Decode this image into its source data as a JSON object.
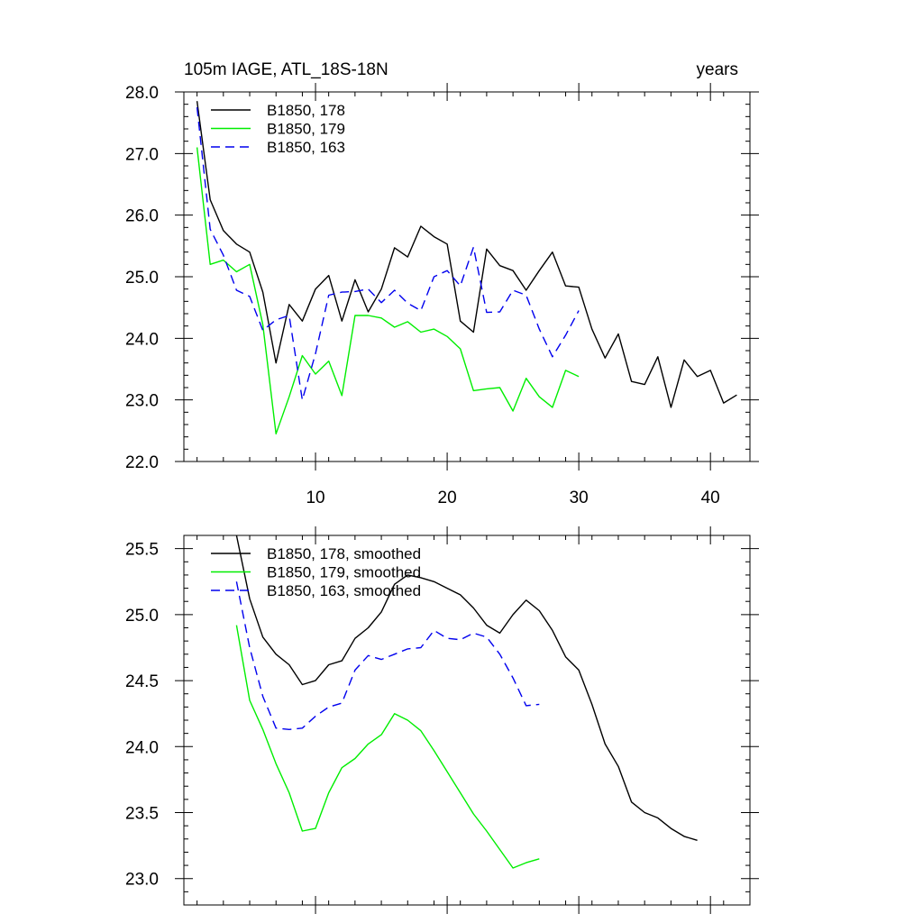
{
  "chart_data": [
    {
      "type": "line",
      "title_left": "105m IAGE, ATL_18S-18N",
      "title_right": "years",
      "xlim": [
        0,
        43
      ],
      "ylim": [
        22.0,
        28.0
      ],
      "x_ticks": [
        10,
        20,
        30,
        40
      ],
      "x_tick_labels": [
        "10",
        "20",
        "30",
        "40"
      ],
      "y_ticks": [
        22.0,
        23.0,
        24.0,
        25.0,
        26.0,
        27.0,
        28.0
      ],
      "y_tick_labels": [
        "22.0",
        "23.0",
        "24.0",
        "25.0",
        "26.0",
        "27.0",
        "28.0"
      ],
      "series": [
        {
          "name": "B1850, 178",
          "color": "#000000",
          "dash": "solid",
          "x": [
            1,
            2,
            3,
            4,
            5,
            6,
            7,
            8,
            9,
            10,
            11,
            12,
            13,
            14,
            15,
            16,
            17,
            18,
            19,
            20,
            21,
            22,
            23,
            24,
            25,
            26,
            27,
            28,
            29,
            30,
            31,
            32,
            33,
            34,
            35,
            36,
            37,
            38,
            39,
            40,
            41,
            42
          ],
          "values": [
            27.85,
            26.25,
            25.75,
            25.53,
            25.4,
            24.75,
            23.6,
            24.55,
            24.28,
            24.8,
            25.02,
            24.28,
            24.95,
            24.43,
            24.8,
            25.47,
            25.32,
            25.82,
            25.65,
            25.53,
            24.28,
            24.1,
            25.45,
            25.18,
            25.1,
            24.78,
            25.1,
            25.4,
            24.85,
            24.83,
            24.15,
            23.68,
            24.07,
            23.3,
            23.25,
            23.7,
            22.88,
            23.65,
            23.38,
            23.48,
            22.95,
            23.08
          ]
        },
        {
          "name": "B1850, 179",
          "color": "#00ee00",
          "dash": "solid",
          "x": [
            1,
            2,
            3,
            4,
            5,
            6,
            7,
            8,
            9,
            10,
            11,
            12,
            13,
            14,
            15,
            16,
            17,
            18,
            19,
            20,
            21,
            22,
            23,
            24,
            25,
            26,
            27,
            28,
            29,
            30
          ],
          "values": [
            27.1,
            25.2,
            25.27,
            25.08,
            25.2,
            24.22,
            22.45,
            23.05,
            23.72,
            23.42,
            23.63,
            23.07,
            24.37,
            24.37,
            24.33,
            24.18,
            24.27,
            24.1,
            24.15,
            24.03,
            23.83,
            23.15,
            23.18,
            23.2,
            22.82,
            23.35,
            23.05,
            22.88,
            23.48,
            23.38
          ]
        },
        {
          "name": "B1850, 163",
          "color": "#0000ee",
          "dash": "dashed",
          "x": [
            1,
            2,
            3,
            4,
            5,
            6,
            7,
            8,
            9,
            10,
            11,
            12,
            13,
            14,
            15,
            16,
            17,
            18,
            19,
            20,
            21,
            22,
            23,
            24,
            25,
            26,
            27,
            28,
            29,
            30
          ],
          "values": [
            27.75,
            25.77,
            25.35,
            24.78,
            24.68,
            24.13,
            24.3,
            24.37,
            23.0,
            23.75,
            24.7,
            24.75,
            24.76,
            24.8,
            24.58,
            24.78,
            24.57,
            24.45,
            25.0,
            25.1,
            24.85,
            25.48,
            24.42,
            24.43,
            24.78,
            24.7,
            24.15,
            23.7,
            24.05,
            24.45
          ]
        }
      ],
      "legend": {
        "placement": "top-left",
        "entries": [
          "B1850, 178",
          "B1850, 179",
          "B1850, 163"
        ]
      }
    },
    {
      "type": "line",
      "xlim": [
        0,
        43
      ],
      "ylim": [
        22.8,
        25.6
      ],
      "x_ticks": [
        10,
        20,
        30,
        40
      ],
      "y_ticks": [
        23.0,
        23.5,
        24.0,
        24.5,
        25.0,
        25.5
      ],
      "y_tick_labels": [
        "23.0",
        "23.5",
        "24.0",
        "24.5",
        "25.0",
        "25.5"
      ],
      "series": [
        {
          "name": "B1850, 178, smoothed",
          "color": "#000000",
          "dash": "solid",
          "x": [
            4,
            5,
            6,
            7,
            8,
            9,
            10,
            11,
            12,
            13,
            14,
            15,
            16,
            17,
            18,
            19,
            20,
            21,
            22,
            23,
            24,
            25,
            26,
            27,
            28,
            29,
            30,
            31,
            32,
            33,
            34,
            35,
            36,
            37,
            38,
            39
          ],
          "values": [
            25.6,
            25.12,
            24.83,
            24.7,
            24.62,
            24.47,
            24.5,
            24.62,
            24.65,
            24.82,
            24.9,
            25.02,
            25.23,
            25.3,
            25.28,
            25.25,
            25.2,
            25.15,
            25.05,
            24.92,
            24.86,
            25.0,
            25.11,
            25.03,
            24.88,
            24.68,
            24.58,
            24.32,
            24.02,
            23.85,
            23.58,
            23.5,
            23.46,
            23.38,
            23.32,
            23.29
          ]
        },
        {
          "name": "B1850, 179, smoothed",
          "color": "#00ee00",
          "dash": "solid",
          "x": [
            4,
            5,
            6,
            7,
            8,
            9,
            10,
            11,
            12,
            13,
            14,
            15,
            16,
            17,
            18,
            19,
            20,
            21,
            22,
            23,
            24,
            25,
            26,
            27
          ],
          "values": [
            24.92,
            24.35,
            24.13,
            23.87,
            23.65,
            23.36,
            23.38,
            23.65,
            23.84,
            23.91,
            24.02,
            24.09,
            24.25,
            24.2,
            24.12,
            23.97,
            23.81,
            23.65,
            23.49,
            23.36,
            23.22,
            23.08,
            23.12,
            23.15
          ]
        },
        {
          "name": "B1850, 163, smoothed",
          "color": "#0000ee",
          "dash": "dashed",
          "x": [
            4,
            5,
            6,
            7,
            8,
            9,
            10,
            11,
            12,
            13,
            14,
            15,
            16,
            17,
            18,
            19,
            20,
            21,
            22,
            23,
            24,
            25,
            26,
            27
          ],
          "values": [
            25.25,
            24.75,
            24.38,
            24.14,
            24.13,
            24.14,
            24.23,
            24.3,
            24.33,
            24.58,
            24.69,
            24.66,
            24.7,
            24.74,
            24.75,
            24.88,
            24.82,
            24.81,
            24.86,
            24.83,
            24.7,
            24.52,
            24.31,
            24.32
          ]
        }
      ],
      "legend": {
        "placement": "top-left",
        "entries": [
          "B1850, 178, smoothed",
          "B1850, 179, smoothed",
          "B1850, 163, smoothed"
        ]
      }
    }
  ]
}
